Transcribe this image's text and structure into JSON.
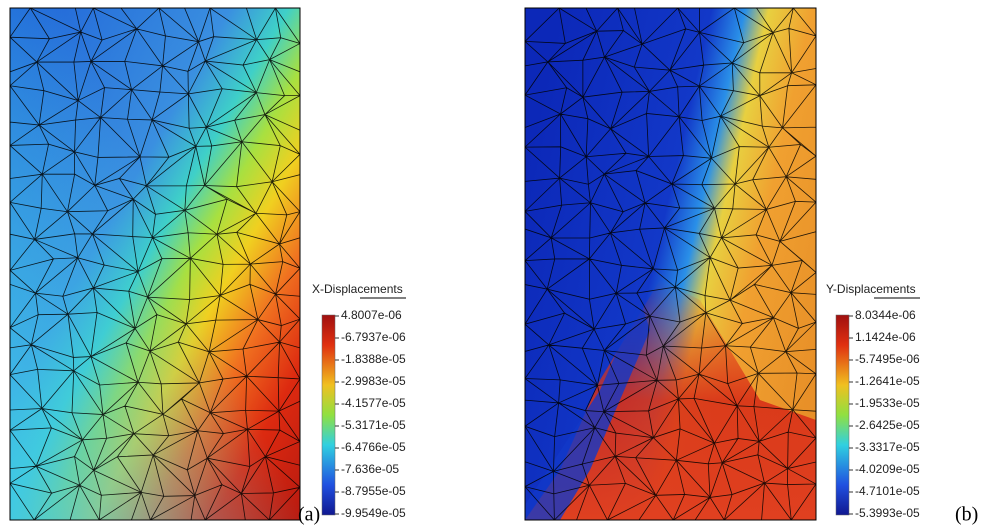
{
  "panels": [
    {
      "colorbar": {
        "title": "X-Displacements",
        "labels": [
          "4.8007e-06",
          "-6.7937e-06",
          "-1.8388e-05",
          "-2.9983e-05",
          "-4.1577e-05",
          "-5.3171e-05",
          "-6.4766e-05",
          "-7.636e-05",
          "-8.7955e-05",
          "-9.9549e-05"
        ]
      },
      "caption": "(a)"
    },
    {
      "colorbar": {
        "title": "Y-Displacements",
        "labels": [
          "8.0344e-06",
          "1.1424e-06",
          "-5.7495e-06",
          "-1.2641e-05",
          "-1.9533e-05",
          "-2.6425e-05",
          "-3.3317e-05",
          "-4.0209e-05",
          "-4.7101e-05",
          "-5.3993e-05"
        ]
      },
      "caption": "(b)"
    }
  ]
}
